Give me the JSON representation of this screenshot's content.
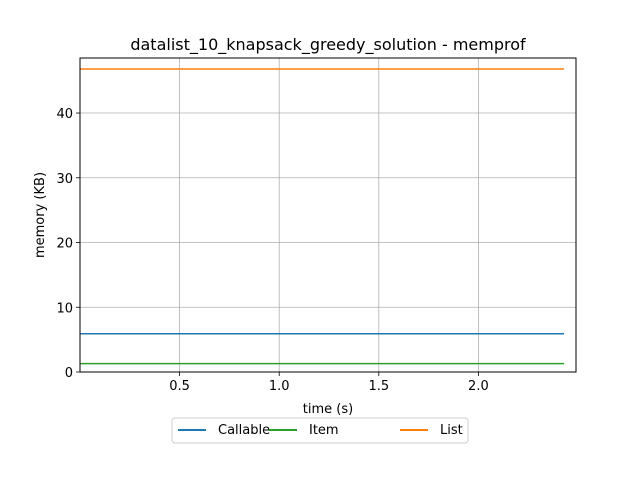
{
  "chart_data": {
    "type": "line",
    "title": "datalist_10_knapsack_greedy_solution - memprof",
    "xlabel": "time (s)",
    "ylabel": "memory (KB)",
    "xlim": [
      0.0,
      2.49
    ],
    "ylim": [
      0,
      48.5
    ],
    "xticks": [
      0.5,
      1.0,
      1.5,
      2.0
    ],
    "xtick_labels": [
      "0.5",
      "1.0",
      "1.5",
      "2.0"
    ],
    "yticks": [
      0,
      10,
      20,
      30,
      40
    ],
    "ytick_labels": [
      "0",
      "10",
      "20",
      "30",
      "40"
    ],
    "grid": true,
    "legend_position": "below",
    "series": [
      {
        "name": "Callable",
        "color": "#1f77b4",
        "x": [
          0.0,
          2.43
        ],
        "y": [
          5.9,
          5.9
        ]
      },
      {
        "name": "Item",
        "color": "#2ca02c",
        "x": [
          0.0,
          2.43
        ],
        "y": [
          1.3,
          1.3
        ]
      },
      {
        "name": "List",
        "color": "#ff7f0e",
        "x": [
          0.0,
          2.43
        ],
        "y": [
          46.8,
          46.8
        ]
      }
    ]
  }
}
